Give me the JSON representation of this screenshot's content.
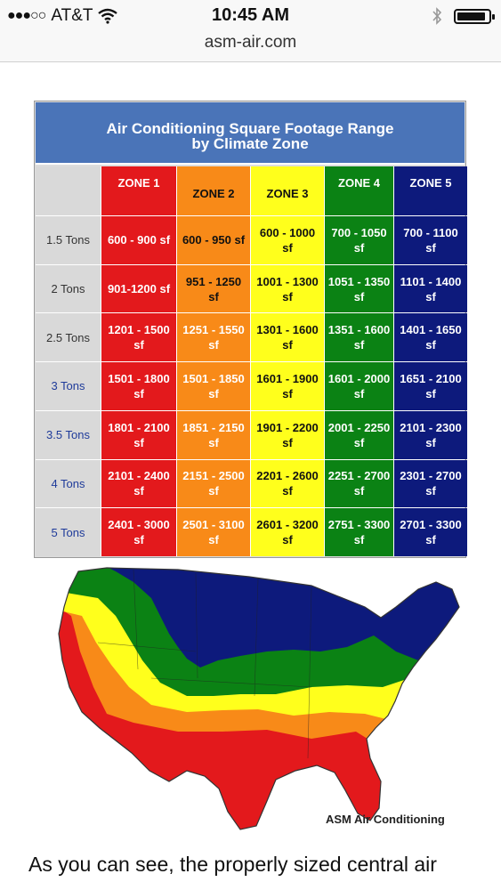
{
  "status_bar": {
    "signal": "●●●○○",
    "carrier": "AT&T",
    "time": "10:45 AM",
    "battery_level": 0.9
  },
  "browser": {
    "url": "asm-air.com"
  },
  "table": {
    "title_line1": "Air Conditioning Square Footage Range",
    "title_line2": "by Climate Zone",
    "zones": [
      "ZONE 1",
      "ZONE 2",
      "ZONE 3",
      "ZONE 4",
      "ZONE 5"
    ],
    "zone_colors": [
      "#e3191c",
      "#f88a18",
      "#ffff1c",
      "#0b8214",
      "#0d1a7c"
    ],
    "rows": [
      {
        "tons": "1.5 Tons",
        "values": [
          "600 - 900 sf",
          "600 - 950 sf",
          "600 - 1000 sf",
          "700 - 1050 sf",
          "700 - 1100 sf"
        ]
      },
      {
        "tons": "2 Tons",
        "values": [
          "901-1200 sf",
          "951 - 1250 sf",
          "1001 - 1300 sf",
          "1051 - 1350 sf",
          "1101 - 1400 sf"
        ]
      },
      {
        "tons": "2.5 Tons",
        "values": [
          "1201 - 1500 sf",
          "1251 - 1550 sf",
          "1301 - 1600 sf",
          "1351 - 1600 sf",
          "1401 - 1650 sf"
        ]
      },
      {
        "tons": "3 Tons",
        "values": [
          "1501 - 1800 sf",
          "1501 - 1850 sf",
          "1601 - 1900 sf",
          "1601 - 2000 sf",
          "1651 - 2100 sf"
        ]
      },
      {
        "tons": "3.5 Tons",
        "values": [
          "1801 - 2100 sf",
          "1851 - 2150 sf",
          "1901 - 2200 sf",
          "2001 - 2250 sf",
          "2101 - 2300 sf"
        ]
      },
      {
        "tons": "4 Tons",
        "values": [
          "2101 - 2400 sf",
          "2151 - 2500 sf",
          "2201 - 2600 sf",
          "2251 - 2700 sf",
          "2301 - 2700 sf"
        ]
      },
      {
        "tons": "5 Tons",
        "values": [
          "2401 - 3000 sf",
          "2501 - 3100 sf",
          "2601 - 3200 sf",
          "2751 - 3300 sf",
          "2701 - 3300 sf"
        ]
      }
    ]
  },
  "map": {
    "credit": "ASM Air Conditioning"
  },
  "body_text": "As you can see, the properly sized central air"
}
